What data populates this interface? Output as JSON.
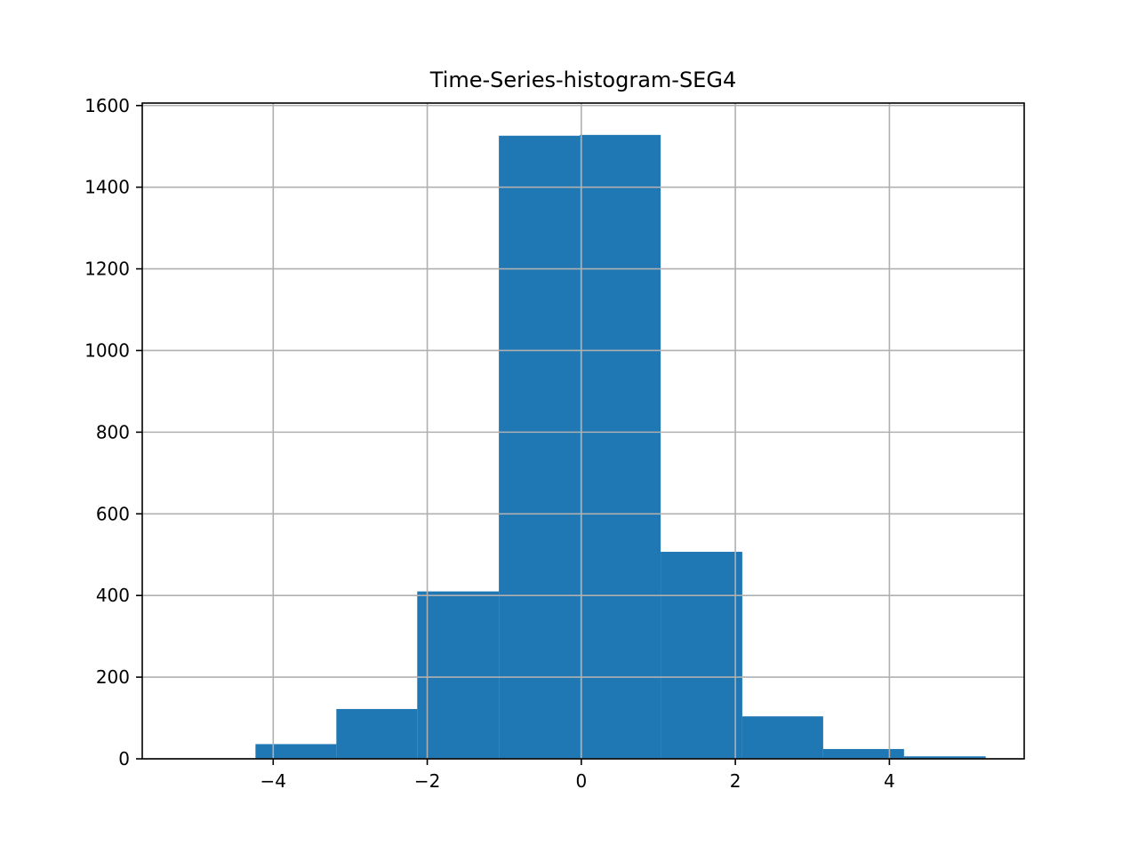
{
  "chart_data": {
    "type": "bar",
    "title": "Time-Series-histogram-SEG4",
    "xlabel": "",
    "ylabel": "",
    "xlim": [
      -5.7,
      5.75
    ],
    "ylim": [
      0,
      1606
    ],
    "grid": true,
    "bar_color": "#1f77b4",
    "grid_color": "#b0b0b0",
    "bins": [
      {
        "x0": -4.23,
        "x1": -3.18,
        "count": 36
      },
      {
        "x0": -3.18,
        "x1": -2.13,
        "count": 122
      },
      {
        "x0": -2.13,
        "x1": -1.07,
        "count": 410
      },
      {
        "x0": -1.07,
        "x1": -0.02,
        "count": 1526
      },
      {
        "x0": -0.02,
        "x1": 1.03,
        "count": 1528
      },
      {
        "x0": 1.03,
        "x1": 2.09,
        "count": 507
      },
      {
        "x0": 2.09,
        "x1": 3.14,
        "count": 104
      },
      {
        "x0": 3.14,
        "x1": 4.19,
        "count": 24
      },
      {
        "x0": 4.19,
        "x1": 5.25,
        "count": 6
      }
    ],
    "x_ticks": [
      {
        "value": -4,
        "label": "−4"
      },
      {
        "value": -2,
        "label": "−2"
      },
      {
        "value": 0,
        "label": "0"
      },
      {
        "value": 2,
        "label": "2"
      },
      {
        "value": 4,
        "label": "4"
      }
    ],
    "y_ticks": [
      {
        "value": 0,
        "label": "0"
      },
      {
        "value": 200,
        "label": "200"
      },
      {
        "value": 400,
        "label": "400"
      },
      {
        "value": 600,
        "label": "600"
      },
      {
        "value": 800,
        "label": "800"
      },
      {
        "value": 1000,
        "label": "1000"
      },
      {
        "value": 1200,
        "label": "1200"
      },
      {
        "value": 1400,
        "label": "1400"
      },
      {
        "value": 1600,
        "label": "1600"
      }
    ]
  }
}
